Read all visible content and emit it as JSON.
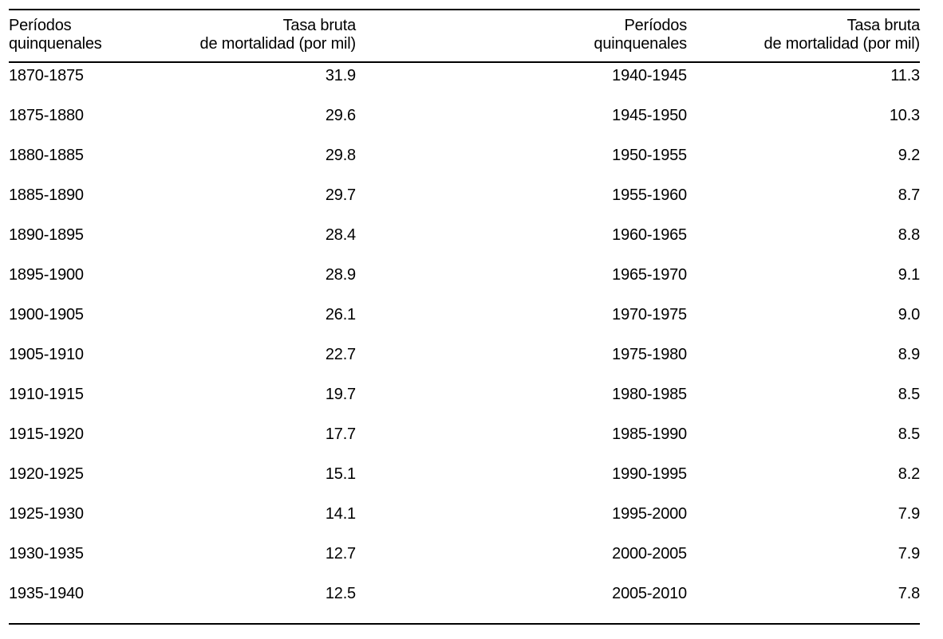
{
  "table": {
    "headers": [
      {
        "label": "Períodos\nquinquenales",
        "align": "left"
      },
      {
        "label": "Tasa bruta\nde mortalidad (por mil)",
        "align": "right"
      },
      {
        "label": "Períodos\nquinquenales",
        "align": "right"
      },
      {
        "label": "Tasa bruta\nde mortalidad (por mil)",
        "align": "right"
      }
    ],
    "rows": [
      [
        "1870-1875",
        "31.9",
        "1940-1945",
        "11.3"
      ],
      [
        "1875-1880",
        "29.6",
        "1945-1950",
        "10.3"
      ],
      [
        "1880-1885",
        "29.8",
        "1950-1955",
        "9.2"
      ],
      [
        "1885-1890",
        "29.7",
        "1955-1960",
        "8.7"
      ],
      [
        "1890-1895",
        "28.4",
        "1960-1965",
        "8.8"
      ],
      [
        "1895-1900",
        "28.9",
        "1965-1970",
        "9.1"
      ],
      [
        "1900-1905",
        "26.1",
        "1970-1975",
        "9.0"
      ],
      [
        "1905-1910",
        "22.7",
        "1975-1980",
        "8.9"
      ],
      [
        "1910-1915",
        "19.7",
        "1980-1985",
        "8.5"
      ],
      [
        "1915-1920",
        "17.7",
        "1985-1990",
        "8.5"
      ],
      [
        "1920-1925",
        "15.1",
        "1990-1995",
        "8.2"
      ],
      [
        "1925-1930",
        "14.1",
        "1995-2000",
        "7.9"
      ],
      [
        "1930-1935",
        "12.7",
        "2000-2005",
        "7.9"
      ],
      [
        "1935-1940",
        "12.5",
        "2005-2010",
        "7.8"
      ]
    ]
  },
  "chart_data": {
    "type": "table",
    "title": "",
    "columns": [
      "Períodos quinquenales",
      "Tasa bruta de mortalidad (por mil)"
    ],
    "x": [
      "1870-1875",
      "1875-1880",
      "1880-1885",
      "1885-1890",
      "1890-1895",
      "1895-1900",
      "1900-1905",
      "1905-1910",
      "1910-1915",
      "1915-1920",
      "1920-1925",
      "1925-1930",
      "1930-1935",
      "1935-1940",
      "1940-1945",
      "1945-1950",
      "1950-1955",
      "1955-1960",
      "1960-1965",
      "1965-1970",
      "1970-1975",
      "1975-1980",
      "1980-1985",
      "1985-1990",
      "1990-1995",
      "1995-2000",
      "2000-2005",
      "2005-2010"
    ],
    "values": [
      31.9,
      29.6,
      29.8,
      29.7,
      28.4,
      28.9,
      26.1,
      22.7,
      19.7,
      17.7,
      15.1,
      14.1,
      12.7,
      12.5,
      11.3,
      10.3,
      9.2,
      8.7,
      8.8,
      9.1,
      9.0,
      8.9,
      8.5,
      8.5,
      8.2,
      7.9,
      7.9,
      7.8
    ]
  },
  "colors": {
    "text": "#000000",
    "rule": "#000000",
    "background": "#ffffff"
  }
}
